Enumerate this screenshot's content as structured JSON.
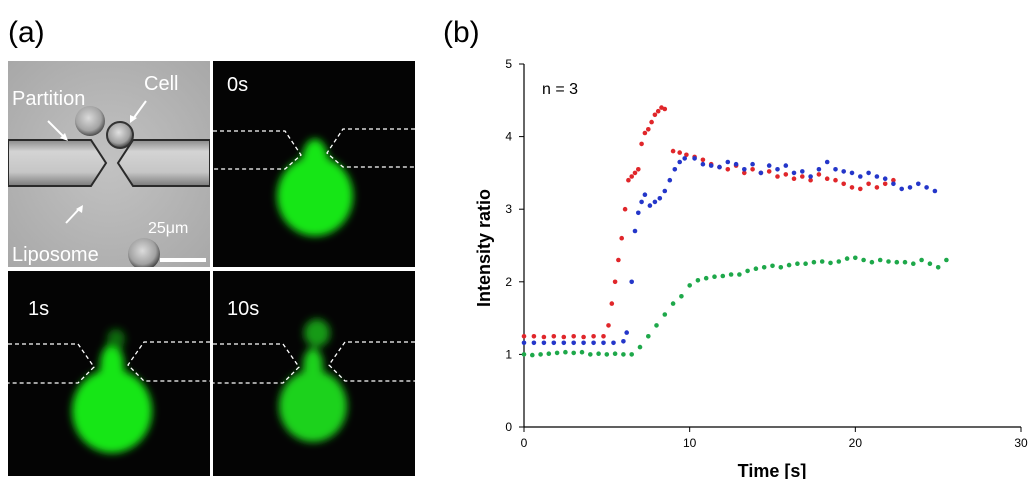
{
  "panel_a": {
    "letter": "(a)",
    "bf": {
      "partition": "Partition",
      "cell": "Cell",
      "liposome": "Liposome",
      "scale": "25μm"
    },
    "frames": [
      "0s",
      "1s",
      "10s"
    ]
  },
  "panel_b": {
    "letter": "(b)"
  },
  "colors": {
    "red": "#e0262a",
    "blue": "#2436c9",
    "green": "#1ea84a",
    "fluor": "#17e617"
  },
  "chart_data": {
    "type": "scatter",
    "title": "",
    "xlabel": "Time [s]",
    "ylabel": "Intensity ratio",
    "xlim": [
      0,
      30
    ],
    "ylim": [
      0,
      5
    ],
    "xticks": [
      0,
      10,
      20,
      30
    ],
    "yticks": [
      0,
      1,
      2,
      3,
      4,
      5
    ],
    "annotation": "n = 3",
    "grid": false,
    "series": [
      {
        "color": "#e0262a",
        "points": [
          [
            0,
            1.25
          ],
          [
            0.6,
            1.25
          ],
          [
            1.2,
            1.24
          ],
          [
            1.8,
            1.25
          ],
          [
            2.4,
            1.24
          ],
          [
            3,
            1.25
          ],
          [
            3.6,
            1.24
          ],
          [
            4.2,
            1.25
          ],
          [
            4.8,
            1.25
          ],
          [
            5.1,
            1.4
          ],
          [
            5.3,
            1.7
          ],
          [
            5.5,
            2.0
          ],
          [
            5.7,
            2.3
          ],
          [
            5.9,
            2.6
          ],
          [
            6.1,
            3.0
          ],
          [
            6.3,
            3.4
          ],
          [
            6.5,
            3.45
          ],
          [
            6.7,
            3.5
          ],
          [
            6.9,
            3.55
          ],
          [
            7.1,
            3.9
          ],
          [
            7.3,
            4.05
          ],
          [
            7.5,
            4.1
          ],
          [
            7.7,
            4.2
          ],
          [
            7.9,
            4.3
          ],
          [
            8.1,
            4.35
          ],
          [
            8.3,
            4.4
          ],
          [
            8.5,
            4.38
          ],
          [
            9.0,
            3.8
          ],
          [
            9.4,
            3.78
          ],
          [
            9.8,
            3.75
          ],
          [
            10.3,
            3.72
          ],
          [
            10.8,
            3.68
          ],
          [
            11.3,
            3.62
          ],
          [
            11.8,
            3.58
          ],
          [
            12.3,
            3.55
          ],
          [
            12.8,
            3.6
          ],
          [
            13.3,
            3.5
          ],
          [
            13.8,
            3.55
          ],
          [
            14.3,
            3.5
          ],
          [
            14.8,
            3.52
          ],
          [
            15.3,
            3.45
          ],
          [
            15.8,
            3.48
          ],
          [
            16.3,
            3.42
          ],
          [
            16.8,
            3.45
          ],
          [
            17.3,
            3.4
          ],
          [
            17.8,
            3.48
          ],
          [
            18.3,
            3.42
          ],
          [
            18.8,
            3.4
          ],
          [
            19.3,
            3.35
          ],
          [
            19.8,
            3.3
          ],
          [
            20.3,
            3.28
          ],
          [
            20.8,
            3.35
          ],
          [
            21.3,
            3.3
          ],
          [
            21.8,
            3.35
          ],
          [
            22.3,
            3.4
          ]
        ]
      },
      {
        "color": "#2436c9",
        "points": [
          [
            0,
            1.16
          ],
          [
            0.6,
            1.16
          ],
          [
            1.2,
            1.16
          ],
          [
            1.8,
            1.16
          ],
          [
            2.4,
            1.16
          ],
          [
            3,
            1.16
          ],
          [
            3.6,
            1.16
          ],
          [
            4.2,
            1.16
          ],
          [
            4.8,
            1.16
          ],
          [
            5.4,
            1.16
          ],
          [
            6,
            1.18
          ],
          [
            6.2,
            1.3
          ],
          [
            6.5,
            2.0
          ],
          [
            6.7,
            2.7
          ],
          [
            6.9,
            2.95
          ],
          [
            7.1,
            3.1
          ],
          [
            7.3,
            3.2
          ],
          [
            7.6,
            3.05
          ],
          [
            7.9,
            3.1
          ],
          [
            8.2,
            3.15
          ],
          [
            8.5,
            3.25
          ],
          [
            8.8,
            3.4
          ],
          [
            9.1,
            3.55
          ],
          [
            9.4,
            3.65
          ],
          [
            9.7,
            3.7
          ],
          [
            10.3,
            3.7
          ],
          [
            10.8,
            3.62
          ],
          [
            11.3,
            3.6
          ],
          [
            11.8,
            3.58
          ],
          [
            12.3,
            3.65
          ],
          [
            12.8,
            3.62
          ],
          [
            13.3,
            3.55
          ],
          [
            13.8,
            3.62
          ],
          [
            14.3,
            3.5
          ],
          [
            14.8,
            3.6
          ],
          [
            15.3,
            3.55
          ],
          [
            15.8,
            3.6
          ],
          [
            16.3,
            3.5
          ],
          [
            16.8,
            3.52
          ],
          [
            17.3,
            3.45
          ],
          [
            17.8,
            3.55
          ],
          [
            18.3,
            3.65
          ],
          [
            18.8,
            3.55
          ],
          [
            19.3,
            3.52
          ],
          [
            19.8,
            3.5
          ],
          [
            20.3,
            3.45
          ],
          [
            20.8,
            3.5
          ],
          [
            21.3,
            3.45
          ],
          [
            21.8,
            3.42
          ],
          [
            22.3,
            3.35
          ],
          [
            22.8,
            3.28
          ],
          [
            23.3,
            3.3
          ],
          [
            23.8,
            3.35
          ],
          [
            24.3,
            3.3
          ],
          [
            24.8,
            3.25
          ]
        ]
      },
      {
        "color": "#1ea84a",
        "points": [
          [
            0,
            1.0
          ],
          [
            0.5,
            0.99
          ],
          [
            1,
            1.0
          ],
          [
            1.5,
            1.01
          ],
          [
            2,
            1.02
          ],
          [
            2.5,
            1.03
          ],
          [
            3,
            1.02
          ],
          [
            3.5,
            1.03
          ],
          [
            4,
            1.0
          ],
          [
            4.5,
            1.01
          ],
          [
            5,
            1.0
          ],
          [
            5.5,
            1.01
          ],
          [
            6,
            1.0
          ],
          [
            6.5,
            1.0
          ],
          [
            7,
            1.1
          ],
          [
            7.5,
            1.25
          ],
          [
            8,
            1.4
          ],
          [
            8.5,
            1.55
          ],
          [
            9,
            1.7
          ],
          [
            9.5,
            1.8
          ],
          [
            10,
            1.95
          ],
          [
            10.5,
            2.02
          ],
          [
            11,
            2.05
          ],
          [
            11.5,
            2.07
          ],
          [
            12,
            2.08
          ],
          [
            12.5,
            2.1
          ],
          [
            13,
            2.1
          ],
          [
            13.5,
            2.15
          ],
          [
            14,
            2.18
          ],
          [
            14.5,
            2.2
          ],
          [
            15,
            2.22
          ],
          [
            15.5,
            2.2
          ],
          [
            16,
            2.23
          ],
          [
            16.5,
            2.25
          ],
          [
            17,
            2.25
          ],
          [
            17.5,
            2.27
          ],
          [
            18,
            2.28
          ],
          [
            18.5,
            2.26
          ],
          [
            19,
            2.28
          ],
          [
            19.5,
            2.32
          ],
          [
            20,
            2.33
          ],
          [
            20.5,
            2.3
          ],
          [
            21,
            2.27
          ],
          [
            21.5,
            2.3
          ],
          [
            22,
            2.28
          ],
          [
            22.5,
            2.27
          ],
          [
            23,
            2.27
          ],
          [
            23.5,
            2.25
          ],
          [
            24,
            2.3
          ],
          [
            24.5,
            2.25
          ],
          [
            25,
            2.2
          ],
          [
            25.5,
            2.3
          ]
        ]
      }
    ]
  }
}
